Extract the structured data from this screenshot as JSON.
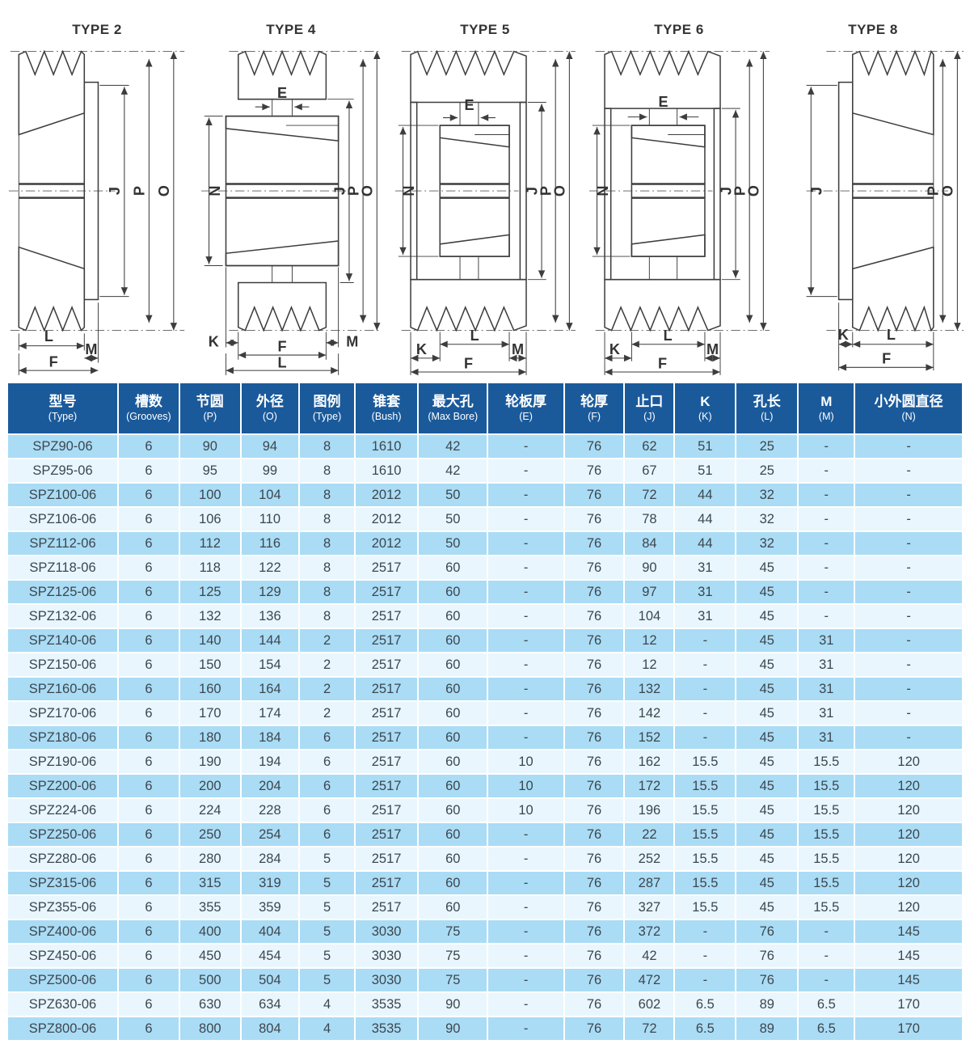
{
  "dim_letters": {
    "E": "E",
    "F": "F",
    "J": "J",
    "K": "K",
    "L": "L",
    "M": "M",
    "N": "N",
    "O": "O",
    "P": "P"
  },
  "diagrams": [
    {
      "title": "TYPE 2",
      "dimension_labels": [
        "J",
        "P",
        "O",
        "L",
        "M",
        "F"
      ]
    },
    {
      "title": "TYPE 4",
      "dimension_labels": [
        "E",
        "N",
        "J",
        "P",
        "O",
        "K",
        "M",
        "F",
        "L"
      ]
    },
    {
      "title": "TYPE 5",
      "dimension_labels": [
        "E",
        "N",
        "J",
        "P",
        "O",
        "L",
        "K",
        "M",
        "F"
      ]
    },
    {
      "title": "TYPE 6",
      "dimension_labels": [
        "E",
        "N",
        "J",
        "P",
        "O",
        "L",
        "K",
        "M",
        "F"
      ]
    },
    {
      "title": "TYPE 8",
      "dimension_labels": [
        "J",
        "P",
        "O",
        "K",
        "L",
        "F"
      ]
    }
  ],
  "table": {
    "colors": {
      "header_bg": "#1a5a9b",
      "row_odd": "#aadcf5",
      "row_even": "#e9f6fd",
      "header_text": "#ffffff",
      "body_text": "#3d464e"
    },
    "columns": [
      {
        "zh": "型号",
        "en": "(Type)"
      },
      {
        "zh": "槽数",
        "en": "(Grooves)"
      },
      {
        "zh": "节圆",
        "en": "(P)"
      },
      {
        "zh": "外径",
        "en": "(O)"
      },
      {
        "zh": "图例",
        "en": "(Type)"
      },
      {
        "zh": "锥套",
        "en": "(Bush)"
      },
      {
        "zh": "最大孔",
        "en": "(Max Bore)"
      },
      {
        "zh": "轮板厚",
        "en": "(E)"
      },
      {
        "zh": "轮厚",
        "en": "(F)"
      },
      {
        "zh": "止口",
        "en": "(J)"
      },
      {
        "zh": "K",
        "en": "(K)"
      },
      {
        "zh": "孔长",
        "en": "(L)"
      },
      {
        "zh": "M",
        "en": "(M)"
      },
      {
        "zh": "小外圆直径",
        "en": "(N)"
      }
    ],
    "rows": [
      [
        "SPZ90-06",
        "6",
        "90",
        "94",
        "8",
        "1610",
        "42",
        "-",
        "76",
        "62",
        "51",
        "25",
        "-",
        "-"
      ],
      [
        "SPZ95-06",
        "6",
        "95",
        "99",
        "8",
        "1610",
        "42",
        "-",
        "76",
        "67",
        "51",
        "25",
        "-",
        "-"
      ],
      [
        "SPZ100-06",
        "6",
        "100",
        "104",
        "8",
        "2012",
        "50",
        "-",
        "76",
        "72",
        "44",
        "32",
        "-",
        "-"
      ],
      [
        "SPZ106-06",
        "6",
        "106",
        "110",
        "8",
        "2012",
        "50",
        "-",
        "76",
        "78",
        "44",
        "32",
        "-",
        "-"
      ],
      [
        "SPZ112-06",
        "6",
        "112",
        "116",
        "8",
        "2012",
        "50",
        "-",
        "76",
        "84",
        "44",
        "32",
        "-",
        "-"
      ],
      [
        "SPZ118-06",
        "6",
        "118",
        "122",
        "8",
        "2517",
        "60",
        "-",
        "76",
        "90",
        "31",
        "45",
        "-",
        "-"
      ],
      [
        "SPZ125-06",
        "6",
        "125",
        "129",
        "8",
        "2517",
        "60",
        "-",
        "76",
        "97",
        "31",
        "45",
        "-",
        "-"
      ],
      [
        "SPZ132-06",
        "6",
        "132",
        "136",
        "8",
        "2517",
        "60",
        "-",
        "76",
        "104",
        "31",
        "45",
        "-",
        "-"
      ],
      [
        "SPZ140-06",
        "6",
        "140",
        "144",
        "2",
        "2517",
        "60",
        "-",
        "76",
        "12",
        "-",
        "45",
        "31",
        "-"
      ],
      [
        "SPZ150-06",
        "6",
        "150",
        "154",
        "2",
        "2517",
        "60",
        "-",
        "76",
        "12",
        "-",
        "45",
        "31",
        "-"
      ],
      [
        "SPZ160-06",
        "6",
        "160",
        "164",
        "2",
        "2517",
        "60",
        "-",
        "76",
        "132",
        "-",
        "45",
        "31",
        "-"
      ],
      [
        "SPZ170-06",
        "6",
        "170",
        "174",
        "2",
        "2517",
        "60",
        "-",
        "76",
        "142",
        "-",
        "45",
        "31",
        "-"
      ],
      [
        "SPZ180-06",
        "6",
        "180",
        "184",
        "6",
        "2517",
        "60",
        "-",
        "76",
        "152",
        "-",
        "45",
        "31",
        "-"
      ],
      [
        "SPZ190-06",
        "6",
        "190",
        "194",
        "6",
        "2517",
        "60",
        "10",
        "76",
        "162",
        "15.5",
        "45",
        "15.5",
        "120"
      ],
      [
        "SPZ200-06",
        "6",
        "200",
        "204",
        "6",
        "2517",
        "60",
        "10",
        "76",
        "172",
        "15.5",
        "45",
        "15.5",
        "120"
      ],
      [
        "SPZ224-06",
        "6",
        "224",
        "228",
        "6",
        "2517",
        "60",
        "10",
        "76",
        "196",
        "15.5",
        "45",
        "15.5",
        "120"
      ],
      [
        "SPZ250-06",
        "6",
        "250",
        "254",
        "6",
        "2517",
        "60",
        "-",
        "76",
        "22",
        "15.5",
        "45",
        "15.5",
        "120"
      ],
      [
        "SPZ280-06",
        "6",
        "280",
        "284",
        "5",
        "2517",
        "60",
        "-",
        "76",
        "252",
        "15.5",
        "45",
        "15.5",
        "120"
      ],
      [
        "SPZ315-06",
        "6",
        "315",
        "319",
        "5",
        "2517",
        "60",
        "-",
        "76",
        "287",
        "15.5",
        "45",
        "15.5",
        "120"
      ],
      [
        "SPZ355-06",
        "6",
        "355",
        "359",
        "5",
        "2517",
        "60",
        "-",
        "76",
        "327",
        "15.5",
        "45",
        "15.5",
        "120"
      ],
      [
        "SPZ400-06",
        "6",
        "400",
        "404",
        "5",
        "3030",
        "75",
        "-",
        "76",
        "372",
        "-",
        "76",
        "-",
        "145"
      ],
      [
        "SPZ450-06",
        "6",
        "450",
        "454",
        "5",
        "3030",
        "75",
        "-",
        "76",
        "42",
        "-",
        "76",
        "-",
        "145"
      ],
      [
        "SPZ500-06",
        "6",
        "500",
        "504",
        "5",
        "3030",
        "75",
        "-",
        "76",
        "472",
        "-",
        "76",
        "-",
        "145"
      ],
      [
        "SPZ630-06",
        "6",
        "630",
        "634",
        "4",
        "3535",
        "90",
        "-",
        "76",
        "602",
        "6.5",
        "89",
        "6.5",
        "170"
      ],
      [
        "SPZ800-06",
        "6",
        "800",
        "804",
        "4",
        "3535",
        "90",
        "-",
        "76",
        "72",
        "6.5",
        "89",
        "6.5",
        "170"
      ]
    ]
  }
}
